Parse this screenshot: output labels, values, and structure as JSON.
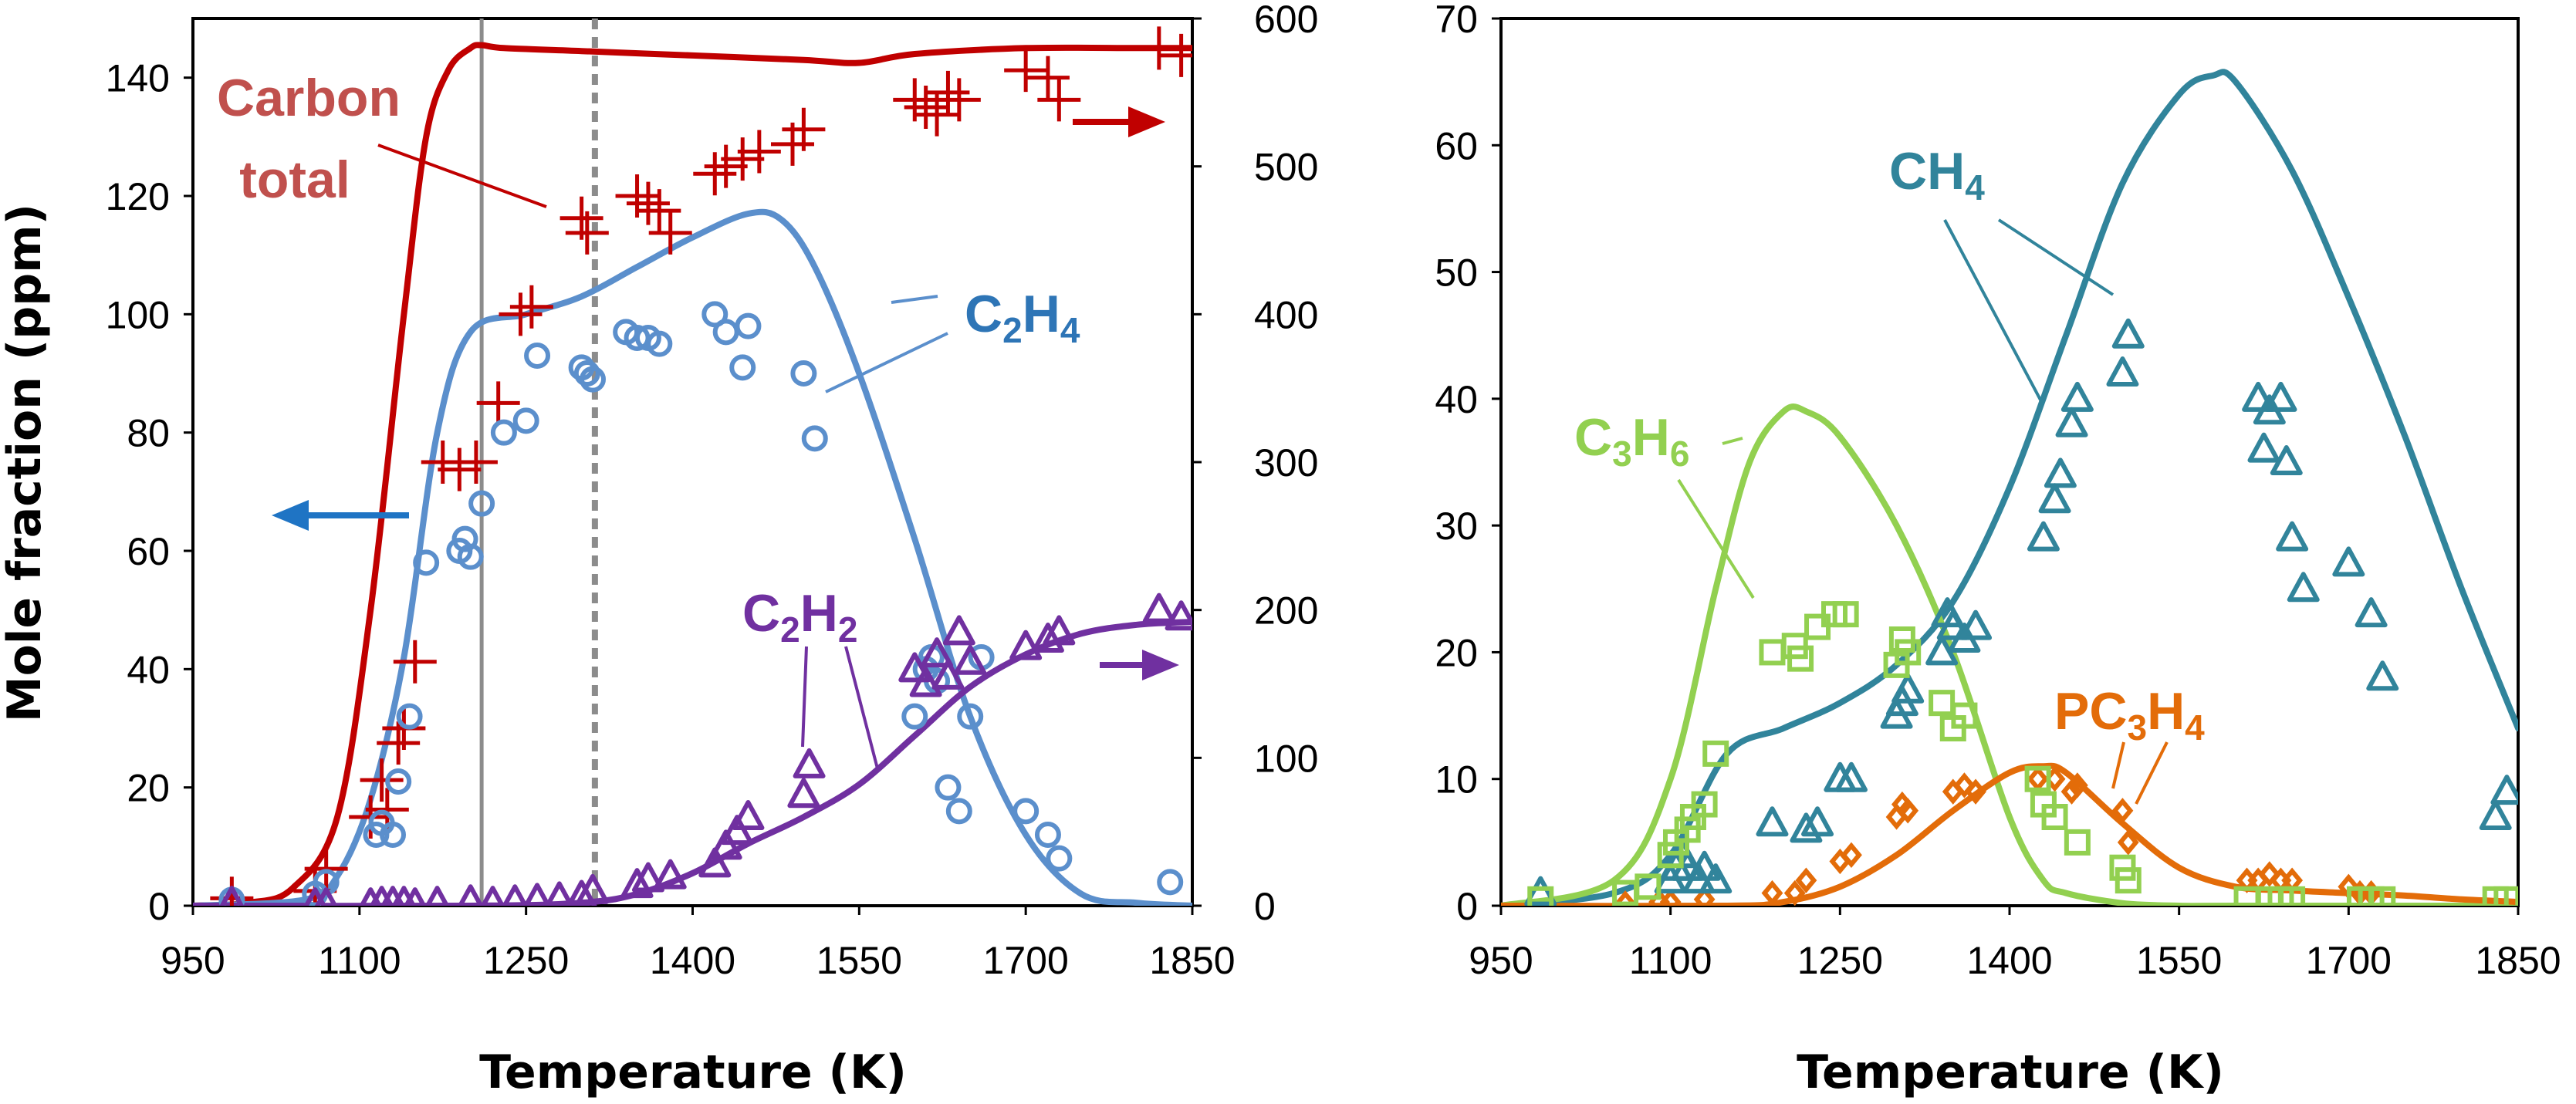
{
  "chart_data": [
    {
      "type": "line",
      "xlabel": "Temperature (K)",
      "ylabel": "Mole fraction (ppm)",
      "xlim": [
        950,
        1850
      ],
      "x_ticks": [
        "950",
        "1100",
        "1250",
        "1400",
        "1550",
        "1700",
        "1850"
      ],
      "ylim": [
        0,
        150
      ],
      "y_ticks": [
        "0",
        "20",
        "40",
        "60",
        "80",
        "100",
        "120",
        "140"
      ],
      "y2lim": [
        0,
        600
      ],
      "y2_ticks": [
        "0",
        "100",
        "200",
        "300",
        "400",
        "500",
        "600"
      ],
      "grid": false,
      "vertical_lines": [
        {
          "x": 1210,
          "style": "solid"
        },
        {
          "x": 1312,
          "style": "dashed"
        }
      ],
      "labels": {
        "carbon_line1": "Carbon",
        "carbon_line2": "total",
        "c2h4": "C2H4",
        "c2h2": "C2H2"
      },
      "colors": {
        "carbon": "#c00000",
        "c2h4": "#5b8fcc",
        "c2h2": "#7030a0",
        "arrow_blue": "#1f74c4",
        "carbon_label": "#c0504d",
        "c2h4_label": "#2e75b6"
      },
      "series": [
        {
          "name": "Carbon total",
          "axis": "right",
          "line": {
            "x": [
              950,
              1000,
              1040,
              1080,
              1110,
              1140,
              1160,
              1180,
              1200,
              1210,
              1230,
              1300,
              1400,
              1500,
              1550,
              1600,
              1700,
              1800,
              1850
            ],
            "y": [
              0,
              2,
              12,
              60,
              200,
              400,
              520,
              565,
              580,
              582,
              580,
              578,
              575,
              572,
              570,
              576,
              580,
              580,
              580
            ]
          },
          "points": {
            "x": [
              985,
              1060,
              1070,
              1110,
              1120,
              1125,
              1135,
              1140,
              1150,
              1175,
              1190,
              1205,
              1225,
              1245,
              1255,
              1300,
              1305,
              1350,
              1360,
              1370,
              1380,
              1420,
              1430,
              1445,
              1460,
              1490,
              1500,
              1600,
              1610,
              1620,
              1630,
              1640,
              1700,
              1720,
              1730,
              1820,
              1840
            ],
            "y": [
              5,
              10,
              25,
              60,
              85,
              65,
              110,
              120,
              165,
              300,
              295,
              300,
              340,
              400,
              405,
              465,
              455,
              480,
              475,
              470,
              455,
              495,
              500,
              505,
              510,
              515,
              525,
              545,
              540,
              535,
              550,
              545,
              565,
              560,
              545,
              580,
              575
            ]
          }
        },
        {
          "name": "C2H4",
          "axis": "left",
          "line": {
            "x": [
              950,
              1050,
              1080,
              1110,
              1140,
              1170,
              1200,
              1250,
              1300,
              1350,
              1400,
              1450,
              1480,
              1510,
              1550,
              1600,
              1650,
              1700,
              1750,
              1800,
              1850
            ],
            "y": [
              0,
              1,
              5,
              18,
              42,
              80,
              97,
              100,
              103,
              108,
              113,
              117,
              116,
              108,
              90,
              62,
              32,
              12,
              2,
              0.5,
              0
            ]
          },
          "points": {
            "x": [
              985,
              1060,
              1070,
              1115,
              1120,
              1130,
              1135,
              1145,
              1160,
              1190,
              1195,
              1200,
              1210,
              1230,
              1250,
              1260,
              1300,
              1305,
              1310,
              1340,
              1350,
              1360,
              1370,
              1420,
              1430,
              1445,
              1450,
              1500,
              1510,
              1600,
              1610,
              1615,
              1620,
              1630,
              1640,
              1650,
              1660,
              1700,
              1720,
              1730,
              1830
            ],
            "y": [
              1,
              2,
              4,
              12,
              14,
              12,
              21,
              32,
              58,
              60,
              62,
              59,
              68,
              80,
              82,
              93,
              91,
              90,
              89,
              97,
              96,
              96,
              95,
              100,
              97,
              91,
              98,
              90,
              79,
              32,
              40,
              42,
              38,
              20,
              16,
              32,
              42,
              16,
              12,
              8,
              4
            ]
          }
        },
        {
          "name": "C2H2",
          "axis": "right",
          "line": {
            "x": [
              950,
              1200,
              1300,
              1350,
              1400,
              1450,
              1500,
              1550,
              1600,
              1650,
              1700,
              1750,
              1800,
              1850
            ],
            "y": [
              0,
              0,
              2,
              8,
              22,
              42,
              60,
              82,
              115,
              148,
              170,
              184,
              190,
              192
            ]
          },
          "points": {
            "x": [
              985,
              1060,
              1070,
              1110,
              1120,
              1130,
              1140,
              1150,
              1170,
              1200,
              1220,
              1240,
              1260,
              1280,
              1300,
              1310,
              1350,
              1360,
              1380,
              1420,
              1430,
              1440,
              1450,
              1500,
              1505,
              1600,
              1610,
              1620,
              1630,
              1640,
              1650,
              1700,
              1720,
              1730,
              1820,
              1840
            ],
            "y": [
              2,
              1,
              1,
              1,
              2,
              2,
              2,
              1,
              2,
              3,
              2,
              3,
              4,
              5,
              6,
              10,
              14,
              18,
              20,
              28,
              40,
              50,
              60,
              75,
              95,
              160,
              150,
              170,
              155,
              185,
              165,
              175,
              180,
              185,
              200,
              195
            ]
          }
        }
      ]
    },
    {
      "type": "line",
      "xlabel": "Temperature (K)",
      "xlim": [
        950,
        1850
      ],
      "x_ticks": [
        "950",
        "1100",
        "1250",
        "1400",
        "1550",
        "1700",
        "1850"
      ],
      "ylim": [
        0,
        70
      ],
      "y_ticks": [
        "0",
        "10",
        "20",
        "30",
        "40",
        "50",
        "60",
        "70"
      ],
      "grid": false,
      "labels": {
        "ch4": "CH4",
        "c3h6": "C3H6",
        "pc3h4": "PC3H4"
      },
      "colors": {
        "ch4": "#31849b",
        "c3h6": "#92d050",
        "pc3h4": "#e36c09"
      },
      "series": [
        {
          "name": "CH4",
          "line": {
            "x": [
              950,
              1050,
              1100,
              1150,
              1200,
              1250,
              1300,
              1350,
              1400,
              1450,
              1500,
              1550,
              1580,
              1600,
              1650,
              1700,
              1750,
              1800,
              1850
            ],
            "y": [
              0,
              1,
              4,
              12,
              14,
              16,
              19,
              24,
              33,
              45,
              57,
              64,
              65.5,
              65,
              58,
              48,
              37,
              25,
              14
            ]
          },
          "points": {
            "x": [
              985,
              1100,
              1105,
              1110,
              1115,
              1125,
              1130,
              1140,
              1190,
              1220,
              1230,
              1250,
              1260,
              1300,
              1305,
              1310,
              1340,
              1345,
              1350,
              1360,
              1370,
              1430,
              1440,
              1445,
              1455,
              1460,
              1500,
              1505,
              1620,
              1625,
              1630,
              1640,
              1645,
              1650,
              1660,
              1700,
              1720,
              1730,
              1830,
              1840
            ],
            "y": [
              1,
              2,
              3,
              4,
              3,
              2,
              3,
              2,
              6.5,
              6,
              6.5,
              10,
              10,
              15,
              16,
              17,
              20,
              23,
              22,
              21,
              22,
              29,
              32,
              34,
              38,
              40,
              42,
              45,
              40,
              36,
              39,
              40,
              35,
              29,
              25,
              27,
              23,
              18,
              7,
              9
            ]
          }
        },
        {
          "name": "C3H6",
          "line": {
            "x": [
              950,
              1050,
              1100,
              1140,
              1170,
              1200,
              1220,
              1250,
              1300,
              1350,
              1400,
              1430,
              1450,
              1500,
              1550,
              1600,
              1850
            ],
            "y": [
              0,
              2,
              10,
              25,
              35,
              39,
              39,
              37,
              30,
              20,
              7,
              2,
              1,
              0.2,
              0,
              0,
              0
            ]
          },
          "points": {
            "x": [
              985,
              1060,
              1080,
              1100,
              1105,
              1115,
              1120,
              1130,
              1140,
              1190,
              1210,
              1215,
              1230,
              1245,
              1255,
              1300,
              1305,
              1310,
              1340,
              1350,
              1360,
              1425,
              1430,
              1440,
              1460,
              1500,
              1505,
              1610,
              1630,
              1640,
              1650,
              1710,
              1720,
              1730,
              1830,
              1840
            ],
            "y": [
              0.5,
              1,
              1.5,
              4,
              5,
              6,
              7,
              8,
              12,
              20,
              20.5,
              19.5,
              22,
              23,
              23,
              19,
              21,
              20,
              16,
              14,
              15,
              10,
              8,
              7,
              5,
              3,
              2,
              0.5,
              0.5,
              0.5,
              0.5,
              0.5,
              0.5,
              0.5,
              0.5,
              0.5
            ]
          }
        },
        {
          "name": "PC3H4",
          "line": {
            "x": [
              950,
              1150,
              1200,
              1250,
              1300,
              1350,
              1400,
              1430,
              1450,
              1500,
              1550,
              1600,
              1650,
              1700,
              1750,
              1800,
              1850
            ],
            "y": [
              0,
              0,
              0.3,
              1.5,
              4,
              7.5,
              10.5,
              11,
              10.5,
              6.5,
              3,
              1.5,
              1.2,
              1,
              0.8,
              0.5,
              0.3
            ]
          },
          "points": {
            "x": [
              1060,
              1090,
              1100,
              1130,
              1190,
              1210,
              1220,
              1250,
              1260,
              1300,
              1305,
              1310,
              1350,
              1360,
              1370,
              1425,
              1440,
              1455,
              1460,
              1500,
              1505,
              1610,
              1620,
              1630,
              1640,
              1650,
              1700,
              1710,
              1720
            ],
            "y": [
              0.2,
              0.3,
              0.3,
              0.5,
              1,
              1,
              2,
              3.5,
              4,
              7,
              8,
              7.5,
              9,
              9.5,
              9,
              10,
              10,
              9,
              9.5,
              7.5,
              5,
              2,
              2,
              2.5,
              2,
              2,
              1.5,
              1,
              1
            ]
          }
        }
      ]
    }
  ]
}
